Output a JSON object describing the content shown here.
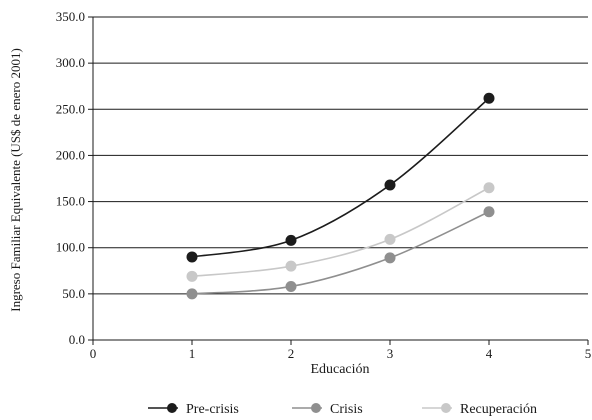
{
  "chart_data": {
    "type": "line",
    "title": "",
    "xlabel": "Educación",
    "ylabel": "Ingreso Familiar Equivalente (US$ de enero 2001)",
    "xlim": [
      0,
      5
    ],
    "ylim": [
      0,
      350
    ],
    "xticks": [
      0,
      1,
      2,
      3,
      4,
      5
    ],
    "yticks": [
      0,
      50,
      100,
      150,
      200,
      250,
      300,
      350
    ],
    "xtick_labels": [
      "0",
      "1",
      "2",
      "3",
      "4",
      "5"
    ],
    "ytick_labels": [
      "0.0",
      "50.0",
      "100.0",
      "150.0",
      "200.0",
      "250.0",
      "300.0",
      "350.0"
    ],
    "grid": "horizontal",
    "legend_position": "bottom",
    "series": [
      {
        "name": "Pre-crisis",
        "color": "#1c1c1c",
        "x": [
          1,
          2,
          3,
          4
        ],
        "y": [
          90,
          108,
          168,
          262
        ]
      },
      {
        "name": "Crisis",
        "color": "#8f8f8f",
        "x": [
          1,
          2,
          3,
          4
        ],
        "y": [
          50,
          58,
          89,
          139
        ]
      },
      {
        "name": "Recuperación",
        "color": "#c8c8c8",
        "x": [
          1,
          2,
          3,
          4
        ],
        "y": [
          69,
          80,
          109,
          165
        ]
      }
    ]
  }
}
